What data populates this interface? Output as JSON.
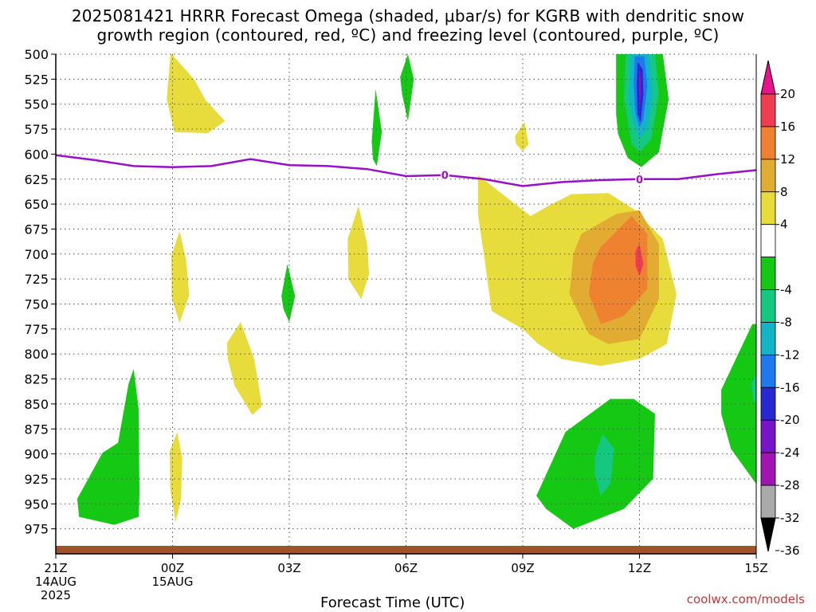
{
  "title_line1": "2025081421 HRRR Forecast Omega (shaded, μbar/s) for KGRB with dendritic snow",
  "title_line2": "growth region (contoured, red, ºC) and freezing level (contoured, purple, ºC)",
  "credit": "coolwx.com/models",
  "chart_data": {
    "type": "contour",
    "title": "2025081421 HRRR Forecast Omega (shaded, μbar/s) for KGRB with dendritic snow growth region (contoured, red, ºC) and freezing level (contoured, purple, ºC)",
    "xlabel": "Forecast Time (UTC)",
    "ylabel": "",
    "x_ticks": [
      {
        "hour": 0,
        "label": "21Z",
        "sub1": "14AUG",
        "sub2": "2025"
      },
      {
        "hour": 3,
        "label": "00Z",
        "sub1": "15AUG",
        "sub2": ""
      },
      {
        "hour": 6,
        "label": "03Z",
        "sub1": "",
        "sub2": ""
      },
      {
        "hour": 9,
        "label": "06Z",
        "sub1": "",
        "sub2": ""
      },
      {
        "hour": 12,
        "label": "09Z",
        "sub1": "",
        "sub2": ""
      },
      {
        "hour": 15,
        "label": "12Z",
        "sub1": "",
        "sub2": ""
      },
      {
        "hour": 18,
        "label": "15Z",
        "sub1": "",
        "sub2": ""
      }
    ],
    "x_range_hours": [
      0,
      18
    ],
    "y_ticks": [
      500,
      525,
      550,
      575,
      600,
      625,
      650,
      675,
      700,
      725,
      750,
      775,
      800,
      825,
      850,
      875,
      900,
      925,
      950,
      975
    ],
    "y_range": [
      500,
      1000
    ],
    "y_inverted": true,
    "colorbar": {
      "labels": [
        "20",
        "16",
        "12",
        "8",
        "4",
        "-4",
        "-8",
        "-12",
        "-16",
        "-20",
        "-24",
        "-28",
        "-32",
        "-36"
      ],
      "bins": [
        {
          "lo": 20,
          "hi": null,
          "color": "#e8128a"
        },
        {
          "lo": 16,
          "hi": 20,
          "color": "#f03c50"
        },
        {
          "lo": 12,
          "hi": 16,
          "color": "#ee8230"
        },
        {
          "lo": 8,
          "hi": 12,
          "color": "#e2ab32"
        },
        {
          "lo": 4,
          "hi": 8,
          "color": "#e7dc3c"
        },
        {
          "lo": -4,
          "hi": 4,
          "color": "#ffffff"
        },
        {
          "lo": -8,
          "hi": -4,
          "color": "#14c814"
        },
        {
          "lo": -12,
          "hi": -8,
          "color": "#14c882"
        },
        {
          "lo": -16,
          "hi": -12,
          "color": "#14b4c8"
        },
        {
          "lo": -20,
          "hi": -16,
          "color": "#1e78f0"
        },
        {
          "lo": -24,
          "hi": -20,
          "color": "#2828d2"
        },
        {
          "lo": -28,
          "hi": -24,
          "color": "#7814c8"
        },
        {
          "lo": -32,
          "hi": -28,
          "color": "#a014b4"
        },
        {
          "lo": -36,
          "hi": -32,
          "color": "#aaaaaa"
        },
        {
          "lo": null,
          "hi": -36,
          "color": "#000000"
        }
      ]
    },
    "freezing_level": {
      "label": "0",
      "color": "#9a10c8",
      "points": [
        [
          0,
          601
        ],
        [
          1,
          606
        ],
        [
          2,
          612
        ],
        [
          3,
          613
        ],
        [
          4,
          612
        ],
        [
          5,
          605
        ],
        [
          6,
          611
        ],
        [
          7,
          612
        ],
        [
          8,
          615
        ],
        [
          9,
          622
        ],
        [
          10,
          621
        ],
        [
          11,
          625
        ],
        [
          12,
          632
        ],
        [
          13,
          628
        ],
        [
          14,
          626
        ],
        [
          15,
          625
        ],
        [
          16,
          625
        ],
        [
          17,
          620
        ],
        [
          18,
          616
        ]
      ],
      "label_hours": [
        10,
        15
      ]
    },
    "omega_areas": [
      {
        "value": 4,
        "points": [
          [
            2.95,
            499
          ],
          [
            3.55,
            525
          ],
          [
            3.85,
            546
          ],
          [
            4.35,
            567
          ],
          [
            3.9,
            579
          ],
          [
            3.05,
            578
          ],
          [
            2.85,
            545
          ]
        ]
      },
      {
        "value": 4,
        "points": [
          [
            2.97,
            702
          ],
          [
            3.18,
            677
          ],
          [
            3.35,
            706
          ],
          [
            3.43,
            741
          ],
          [
            3.18,
            769
          ],
          [
            2.98,
            744
          ]
        ]
      },
      {
        "value": 4,
        "points": [
          [
            2.93,
            897
          ],
          [
            3.12,
            878
          ],
          [
            3.25,
            904
          ],
          [
            3.22,
            945
          ],
          [
            3.08,
            968
          ],
          [
            2.94,
            935
          ]
        ]
      },
      {
        "value": 4,
        "points": [
          [
            4.4,
            789
          ],
          [
            4.75,
            768
          ],
          [
            5.1,
            805
          ],
          [
            5.3,
            852
          ],
          [
            5.05,
            861
          ],
          [
            4.6,
            832
          ],
          [
            4.42,
            805
          ]
        ]
      },
      {
        "value": 4,
        "points": [
          [
            7.5,
            685
          ],
          [
            7.78,
            652
          ],
          [
            8.0,
            690
          ],
          [
            8.05,
            720
          ],
          [
            7.85,
            745
          ],
          [
            7.52,
            725
          ]
        ]
      },
      {
        "value": 4,
        "points": [
          [
            11.8,
            582
          ],
          [
            12.05,
            568
          ],
          [
            12.15,
            590
          ],
          [
            12.0,
            597
          ],
          [
            11.83,
            590
          ]
        ]
      },
      {
        "value": 4,
        "points": [
          [
            10.85,
            621
          ],
          [
            12.2,
            662
          ],
          [
            12.65,
            652
          ],
          [
            13.25,
            640
          ],
          [
            14.2,
            639
          ],
          [
            14.85,
            655
          ],
          [
            15.6,
            685
          ],
          [
            15.95,
            740
          ],
          [
            15.7,
            790
          ],
          [
            15.0,
            805
          ],
          [
            14.0,
            812
          ],
          [
            13.0,
            805
          ],
          [
            12.4,
            790
          ],
          [
            12.0,
            775
          ],
          [
            11.2,
            757
          ],
          [
            11.0,
            700
          ],
          [
            10.85,
            660
          ]
        ]
      },
      {
        "value": 8,
        "points": [
          [
            13.5,
            680
          ],
          [
            14.4,
            660
          ],
          [
            15.0,
            656
          ],
          [
            15.5,
            690
          ],
          [
            15.5,
            745
          ],
          [
            15.0,
            785
          ],
          [
            14.2,
            790
          ],
          [
            13.7,
            780
          ],
          [
            13.2,
            740
          ],
          [
            13.3,
            700
          ]
        ]
      },
      {
        "value": 12,
        "points": [
          [
            14.0,
            693
          ],
          [
            14.8,
            662
          ],
          [
            15.2,
            680
          ],
          [
            15.2,
            735
          ],
          [
            14.6,
            762
          ],
          [
            14.0,
            770
          ],
          [
            13.7,
            740
          ],
          [
            13.8,
            710
          ]
        ]
      },
      {
        "value": 16,
        "points": [
          [
            14.9,
            697
          ],
          [
            15.0,
            690
          ],
          [
            15.1,
            710
          ],
          [
            15.0,
            722
          ],
          [
            14.9,
            712
          ]
        ]
      },
      {
        "value": -4,
        "points": [
          [
            0.55,
            945
          ],
          [
            1.2,
            899
          ],
          [
            1.6,
            889
          ],
          [
            1.87,
            830
          ],
          [
            2.0,
            815
          ],
          [
            2.13,
            855
          ],
          [
            2.15,
            940
          ],
          [
            2.13,
            963
          ],
          [
            1.5,
            971
          ],
          [
            0.6,
            963
          ]
        ]
      },
      {
        "value": -4,
        "points": [
          [
            8.85,
            523
          ],
          [
            9.05,
            500
          ],
          [
            9.2,
            525
          ],
          [
            9.05,
            567
          ],
          [
            8.9,
            540
          ]
        ]
      },
      {
        "value": -4,
        "points": [
          [
            8.12,
            587
          ],
          [
            8.22,
            535
          ],
          [
            8.38,
            578
          ],
          [
            8.25,
            612
          ],
          [
            8.15,
            605
          ]
        ]
      },
      {
        "value": -4,
        "points": [
          [
            5.8,
            742
          ],
          [
            5.95,
            710
          ],
          [
            6.15,
            742
          ],
          [
            6.0,
            768
          ],
          [
            5.85,
            755
          ]
        ]
      },
      {
        "value": -4,
        "points": [
          [
            12.35,
            942
          ],
          [
            13.1,
            878
          ],
          [
            14.25,
            845
          ],
          [
            14.85,
            845
          ],
          [
            15.4,
            860
          ],
          [
            15.35,
            925
          ],
          [
            14.6,
            955
          ],
          [
            13.3,
            975
          ],
          [
            12.6,
            955
          ]
        ]
      },
      {
        "value": -8,
        "points": [
          [
            13.85,
            903
          ],
          [
            14.05,
            880
          ],
          [
            14.35,
            895
          ],
          [
            14.25,
            930
          ],
          [
            14.0,
            942
          ],
          [
            13.85,
            920
          ]
        ]
      },
      {
        "value": -4,
        "points": [
          [
            17.1,
            836
          ],
          [
            17.9,
            770
          ],
          [
            18.0,
            770
          ],
          [
            18.0,
            930
          ],
          [
            17.35,
            895
          ],
          [
            17.1,
            860
          ]
        ]
      },
      {
        "value": -8,
        "points": [
          [
            17.88,
            830
          ],
          [
            18.0,
            818
          ],
          [
            18.0,
            850
          ],
          [
            17.92,
            846
          ]
        ]
      },
      {
        "value": -4,
        "points": [
          [
            14.4,
            560
          ],
          [
            14.4,
            500
          ],
          [
            15.6,
            500
          ],
          [
            15.75,
            545
          ],
          [
            15.5,
            598
          ],
          [
            15.05,
            613
          ],
          [
            14.7,
            604
          ],
          [
            14.45,
            580
          ]
        ]
      },
      {
        "value": -8,
        "points": [
          [
            14.6,
            545
          ],
          [
            14.65,
            500
          ],
          [
            15.4,
            500
          ],
          [
            15.5,
            540
          ],
          [
            15.3,
            585
          ],
          [
            15.0,
            598
          ],
          [
            14.8,
            590
          ]
        ]
      },
      {
        "value": -12,
        "points": [
          [
            14.72,
            545
          ],
          [
            14.77,
            500
          ],
          [
            15.25,
            500
          ],
          [
            15.35,
            540
          ],
          [
            15.2,
            575
          ],
          [
            15.0,
            585
          ],
          [
            14.85,
            570
          ]
        ]
      },
      {
        "value": -16,
        "points": [
          [
            14.85,
            530
          ],
          [
            14.88,
            502
          ],
          [
            15.12,
            502
          ],
          [
            15.2,
            532
          ],
          [
            15.1,
            565
          ],
          [
            15.0,
            573
          ],
          [
            14.9,
            560
          ]
        ]
      },
      {
        "value": -20,
        "points": [
          [
            14.93,
            530
          ],
          [
            14.95,
            508
          ],
          [
            15.08,
            515
          ],
          [
            15.1,
            540
          ],
          [
            15.03,
            568
          ],
          [
            14.95,
            560
          ]
        ]
      },
      {
        "value": -24,
        "points": [
          [
            14.99,
            515
          ],
          [
            15.04,
            522
          ],
          [
            15.05,
            540
          ],
          [
            15.01,
            552
          ],
          [
            14.98,
            535
          ]
        ]
      }
    ],
    "ground": {
      "color": "#a0522d",
      "top_pressure": 992
    }
  }
}
